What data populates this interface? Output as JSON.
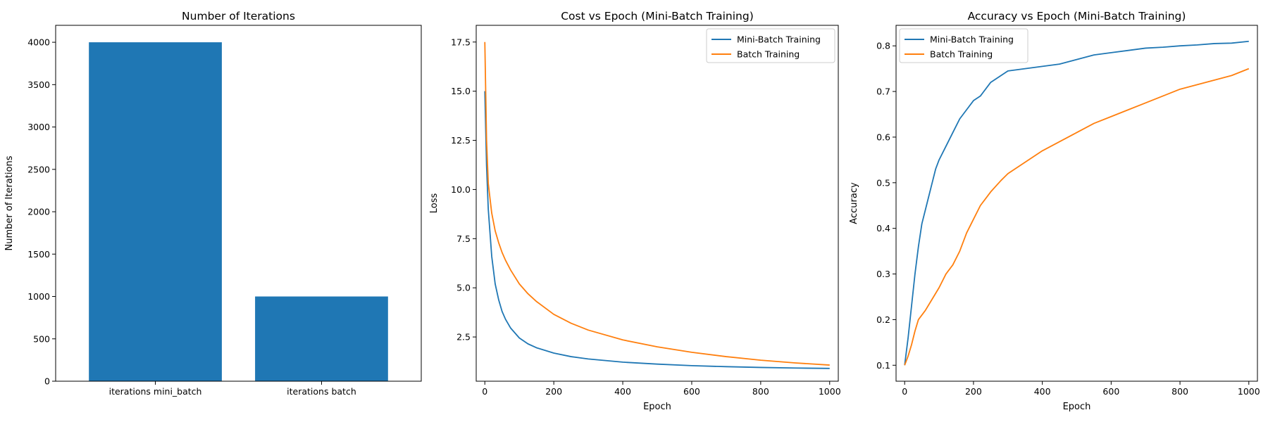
{
  "colors": {
    "blue": "#1f77b4",
    "orange": "#ff7f0e"
  },
  "chart_data": [
    {
      "type": "bar",
      "title": "Number of Iterations",
      "xlabel": "",
      "ylabel": "Number of Iterations",
      "categories": [
        "iterations mini_batch",
        "iterations batch"
      ],
      "values": [
        4000,
        1000
      ],
      "ylim": [
        0,
        4200
      ],
      "yticks": [
        0,
        500,
        1000,
        1500,
        2000,
        2500,
        3000,
        3500,
        4000
      ],
      "ytick_labels": [
        "0",
        "500",
        "1000",
        "1500",
        "2000",
        "2500",
        "3000",
        "3500",
        "4000"
      ],
      "grid": false
    },
    {
      "type": "line",
      "title": "Cost vs Epoch (Mini-Batch Training)",
      "xlabel": "Epoch",
      "ylabel": "Loss",
      "xlim": [
        -25,
        1025
      ],
      "ylim": [
        0.25,
        18.35
      ],
      "xticks": [
        0,
        200,
        400,
        600,
        800,
        1000
      ],
      "xtick_labels": [
        "0",
        "200",
        "400",
        "600",
        "800",
        "1000"
      ],
      "yticks": [
        2.5,
        5.0,
        7.5,
        10.0,
        12.5,
        15.0,
        17.5
      ],
      "ytick_labels": [
        "2.5",
        "5.0",
        "7.5",
        "10.0",
        "12.5",
        "15.0",
        "17.5"
      ],
      "legend": "top-right",
      "grid": false,
      "series": [
        {
          "name": "Mini-Batch Training",
          "x": [
            0,
            5,
            10,
            20,
            30,
            40,
            50,
            60,
            75,
            100,
            125,
            150,
            200,
            250,
            300,
            400,
            500,
            600,
            700,
            800,
            900,
            1000
          ],
          "y": [
            15.0,
            11.2,
            9.0,
            6.6,
            5.2,
            4.4,
            3.8,
            3.4,
            2.95,
            2.45,
            2.15,
            1.95,
            1.68,
            1.5,
            1.38,
            1.22,
            1.12,
            1.04,
            0.99,
            0.95,
            0.92,
            0.9
          ]
        },
        {
          "name": "Batch Training",
          "x": [
            0,
            5,
            10,
            20,
            30,
            40,
            50,
            60,
            75,
            100,
            125,
            150,
            200,
            250,
            300,
            400,
            500,
            600,
            700,
            800,
            900,
            1000
          ],
          "y": [
            17.5,
            12.5,
            10.3,
            8.8,
            7.9,
            7.3,
            6.8,
            6.4,
            5.9,
            5.2,
            4.7,
            4.3,
            3.65,
            3.2,
            2.85,
            2.35,
            2.0,
            1.72,
            1.5,
            1.32,
            1.18,
            1.07
          ]
        }
      ]
    },
    {
      "type": "line",
      "title": "Accuracy vs Epoch (Mini-Batch Training)",
      "xlabel": "Epoch",
      "ylabel": "Accuracy",
      "xlim": [
        -25,
        1025
      ],
      "ylim": [
        0.065,
        0.845
      ],
      "xticks": [
        0,
        200,
        400,
        600,
        800,
        1000
      ],
      "xtick_labels": [
        "0",
        "200",
        "400",
        "600",
        "800",
        "1000"
      ],
      "yticks": [
        0.1,
        0.2,
        0.3,
        0.4,
        0.5,
        0.6,
        0.7,
        0.8
      ],
      "ytick_labels": [
        "0.1",
        "0.2",
        "0.3",
        "0.4",
        "0.5",
        "0.6",
        "0.7",
        "0.8"
      ],
      "legend": "top-left",
      "grid": false,
      "series": [
        {
          "name": "Mini-Batch Training",
          "x": [
            0,
            10,
            20,
            30,
            40,
            50,
            60,
            70,
            80,
            90,
            100,
            120,
            140,
            160,
            180,
            200,
            220,
            250,
            280,
            300,
            350,
            400,
            450,
            500,
            550,
            600,
            650,
            700,
            750,
            800,
            850,
            900,
            950,
            1000
          ],
          "y": [
            0.1,
            0.16,
            0.23,
            0.3,
            0.36,
            0.41,
            0.44,
            0.47,
            0.5,
            0.53,
            0.55,
            0.58,
            0.61,
            0.64,
            0.66,
            0.68,
            0.69,
            0.72,
            0.735,
            0.745,
            0.75,
            0.755,
            0.76,
            0.77,
            0.78,
            0.785,
            0.79,
            0.795,
            0.797,
            0.8,
            0.802,
            0.805,
            0.806,
            0.81
          ]
        },
        {
          "name": "Batch Training",
          "x": [
            0,
            10,
            20,
            30,
            40,
            50,
            60,
            80,
            100,
            120,
            140,
            160,
            180,
            200,
            220,
            250,
            280,
            300,
            350,
            400,
            450,
            500,
            550,
            600,
            650,
            700,
            750,
            800,
            850,
            900,
            950,
            1000
          ],
          "y": [
            0.1,
            0.12,
            0.145,
            0.175,
            0.2,
            0.21,
            0.22,
            0.245,
            0.27,
            0.3,
            0.32,
            0.35,
            0.39,
            0.42,
            0.45,
            0.48,
            0.505,
            0.52,
            0.545,
            0.57,
            0.59,
            0.61,
            0.63,
            0.645,
            0.66,
            0.675,
            0.69,
            0.705,
            0.715,
            0.725,
            0.735,
            0.75
          ]
        }
      ]
    }
  ]
}
